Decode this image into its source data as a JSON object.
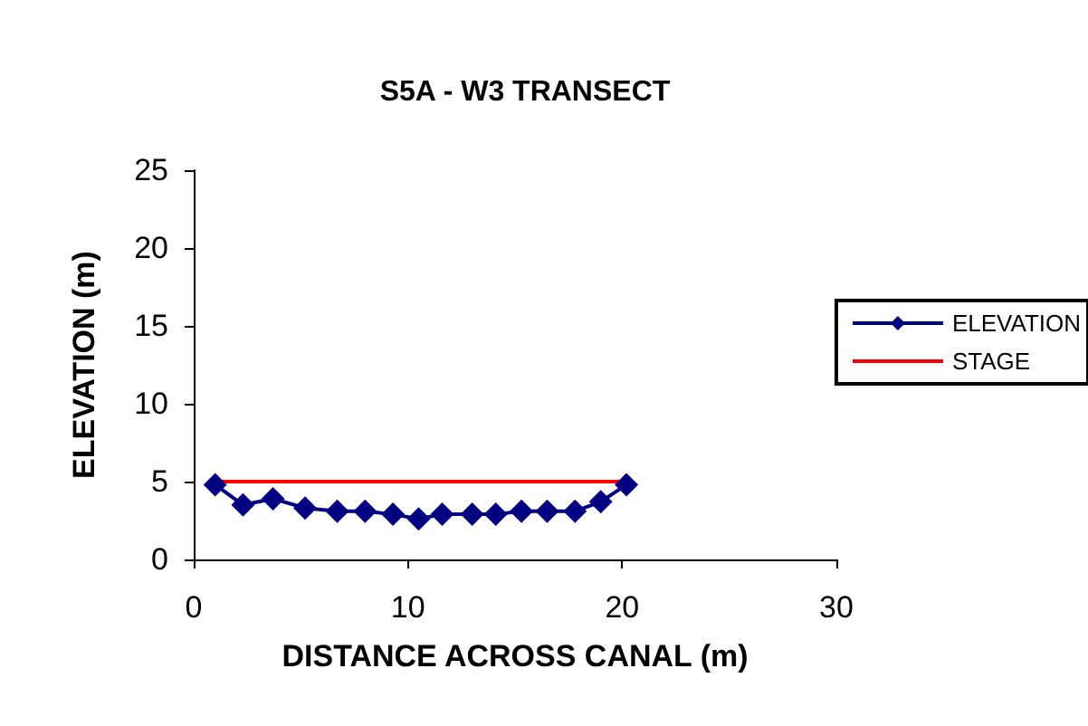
{
  "chart_data": {
    "type": "line",
    "title": "S5A - W3 TRANSECT",
    "xlabel": "DISTANCE ACROSS CANAL (m)",
    "ylabel": "ELEVATION (m)",
    "xlim": [
      0,
      30
    ],
    "xticks": [
      0,
      10,
      20,
      30
    ],
    "ylim": [
      0,
      25
    ],
    "yticks": [
      0,
      5,
      10,
      15,
      20,
      25
    ],
    "grid": false,
    "legend": "right",
    "marker": "diamond",
    "series": [
      {
        "name": "ELEVATION",
        "color": "#000080",
        "x": [
          1,
          2.3,
          3.7,
          5.2,
          6.7,
          8,
          9.3,
          10.5,
          11.6,
          13,
          14.1,
          15.3,
          16.5,
          17.8,
          19,
          20.2
        ],
        "values": [
          4.8,
          3.5,
          3.9,
          3.3,
          3.1,
          3.1,
          2.9,
          2.6,
          2.9,
          2.9,
          2.9,
          3.1,
          3.1,
          3.1,
          3.7,
          4.8
        ]
      },
      {
        "name": "STAGE",
        "color": "#ff0000",
        "marker": "none",
        "x": [
          1,
          20.2
        ],
        "values": [
          5,
          5
        ]
      }
    ]
  }
}
